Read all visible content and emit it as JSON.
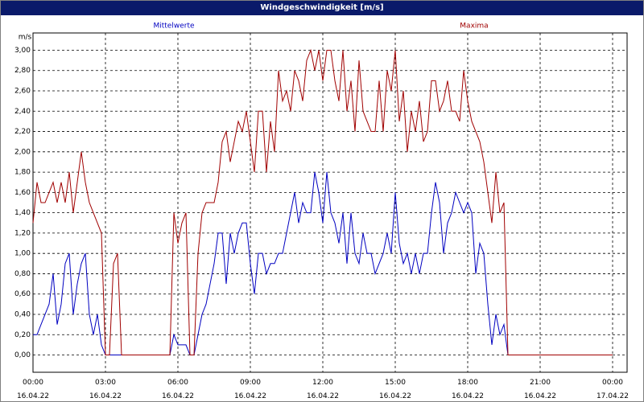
{
  "window_title": "Windgeschwindigkeit [m/s]",
  "chart_data": {
    "type": "line",
    "y_label": "m/s",
    "x": [
      0,
      10,
      20,
      30,
      40,
      50,
      60,
      70,
      80,
      90,
      100,
      110,
      120,
      130,
      140,
      150,
      160,
      170,
      180,
      190,
      200,
      210,
      220,
      230,
      240,
      250,
      260,
      270,
      280,
      290,
      300,
      310,
      320,
      330,
      340,
      350,
      360,
      370,
      380,
      390,
      400,
      410,
      420,
      430,
      440,
      450,
      460,
      470,
      480,
      490,
      500,
      510,
      520,
      530,
      540,
      550,
      560,
      570,
      580,
      590,
      600,
      610,
      620,
      630,
      640,
      650,
      660,
      670,
      680,
      690,
      700,
      710,
      720,
      730,
      740,
      750,
      760,
      770,
      780,
      790,
      800,
      810,
      820,
      830,
      840,
      850,
      860,
      870,
      880,
      890,
      900,
      910,
      920,
      930,
      940,
      950,
      960,
      970,
      980,
      990,
      1000,
      1010,
      1020,
      1030,
      1040,
      1050,
      1060,
      1070,
      1080,
      1090,
      1100,
      1110,
      1120,
      1130,
      1140,
      1150,
      1160,
      1170,
      1180,
      1190,
      1440
    ],
    "series": [
      {
        "name": "Mittelwerte",
        "color": "#0000c0",
        "values": [
          0.2,
          0.2,
          0.3,
          0.4,
          0.5,
          0.8,
          0.3,
          0.5,
          0.9,
          1.0,
          0.4,
          0.7,
          0.9,
          1.0,
          0.4,
          0.2,
          0.4,
          0.1,
          0,
          0,
          0,
          0,
          0,
          0,
          0,
          0,
          0,
          0,
          0,
          0,
          0,
          0,
          0,
          0,
          0,
          0.2,
          0.1,
          0.1,
          0.1,
          0,
          0,
          0.2,
          0.4,
          0.5,
          0.7,
          0.9,
          1.2,
          1.2,
          0.7,
          1.2,
          1.0,
          1.2,
          1.3,
          1.3,
          0.9,
          0.6,
          1.0,
          1.0,
          0.8,
          0.9,
          0.9,
          1.0,
          1.0,
          1.2,
          1.4,
          1.6,
          1.3,
          1.5,
          1.4,
          1.4,
          1.8,
          1.6,
          1.3,
          1.8,
          1.4,
          1.3,
          1.1,
          1.4,
          0.9,
          1.4,
          1.0,
          0.9,
          1.2,
          1.0,
          1.0,
          0.8,
          0.9,
          1.0,
          1.2,
          1.0,
          1.6,
          1.1,
          0.9,
          1.0,
          0.8,
          1.0,
          0.8,
          1.0,
          1.0,
          1.4,
          1.7,
          1.5,
          1.0,
          1.3,
          1.4,
          1.6,
          1.5,
          1.4,
          1.5,
          1.4,
          0.8,
          1.1,
          1.0,
          0.5,
          0.1,
          0.4,
          0.2,
          0.3,
          0,
          0,
          0
        ]
      },
      {
        "name": "Maxima",
        "color": "#a00000",
        "values": [
          1.3,
          1.7,
          1.5,
          1.5,
          1.6,
          1.7,
          1.5,
          1.7,
          1.5,
          1.8,
          1.4,
          1.7,
          2.0,
          1.7,
          1.5,
          1.4,
          1.3,
          1.2,
          0,
          0,
          0.9,
          1.0,
          0,
          0,
          0,
          0,
          0,
          0,
          0,
          0,
          0,
          0,
          0,
          0,
          0,
          1.4,
          1.1,
          1.3,
          1.4,
          0,
          0,
          1.0,
          1.4,
          1.5,
          1.5,
          1.5,
          1.7,
          2.1,
          2.2,
          1.9,
          2.1,
          2.3,
          2.2,
          2.4,
          2.1,
          1.8,
          2.4,
          2.4,
          1.8,
          2.3,
          2.0,
          2.8,
          2.5,
          2.6,
          2.4,
          2.8,
          2.7,
          2.5,
          2.9,
          3.0,
          2.8,
          3.0,
          2.7,
          3.0,
          3.0,
          2.7,
          2.5,
          3.0,
          2.4,
          2.7,
          2.2,
          2.9,
          2.4,
          2.3,
          2.2,
          2.2,
          2.7,
          2.2,
          2.8,
          2.6,
          3.0,
          2.3,
          2.6,
          2.0,
          2.4,
          2.2,
          2.5,
          2.1,
          2.2,
          2.7,
          2.7,
          2.4,
          2.5,
          2.7,
          2.4,
          2.4,
          2.3,
          2.8,
          2.5,
          2.3,
          2.2,
          2.1,
          1.9,
          1.6,
          1.3,
          1.8,
          1.4,
          1.5,
          0,
          0,
          0
        ]
      }
    ],
    "xlim": [
      0,
      1476
    ],
    "xticks": [
      {
        "value": 0,
        "label": "00:00\n16.04.22"
      },
      {
        "value": 180,
        "label": "03:00\n16.04.22"
      },
      {
        "value": 360,
        "label": "06:00\n16.04.22"
      },
      {
        "value": 540,
        "label": "09:00\n16.04.22"
      },
      {
        "value": 720,
        "label": "12:00\n16.04.22"
      },
      {
        "value": 900,
        "label": "15:00\n16.04.22"
      },
      {
        "value": 1080,
        "label": "18:00\n16.04.22"
      },
      {
        "value": 1260,
        "label": "21:00\n16.04.22"
      },
      {
        "value": 1440,
        "label": "00:00\n17.04.22"
      }
    ],
    "ylim": [
      -0.17,
      3.17
    ],
    "yticks": [
      {
        "value": 0,
        "label": "0,00"
      },
      {
        "value": 0.2,
        "label": "0,20"
      },
      {
        "value": 0.4,
        "label": "0,40"
      },
      {
        "value": 0.6,
        "label": "0,60"
      },
      {
        "value": 0.8,
        "label": "0,80"
      },
      {
        "value": 1.0,
        "label": "1,00"
      },
      {
        "value": 1.2,
        "label": "1,20"
      },
      {
        "value": 1.4,
        "label": "1,40"
      },
      {
        "value": 1.6,
        "label": "1,60"
      },
      {
        "value": 1.8,
        "label": "1,80"
      },
      {
        "value": 2.0,
        "label": "2,00"
      },
      {
        "value": 2.2,
        "label": "2,20"
      },
      {
        "value": 2.4,
        "label": "2,40"
      },
      {
        "value": 2.6,
        "label": "2,60"
      },
      {
        "value": 2.8,
        "label": "2,80"
      },
      {
        "value": 3.0,
        "label": "3,00"
      }
    ],
    "grid": true
  }
}
